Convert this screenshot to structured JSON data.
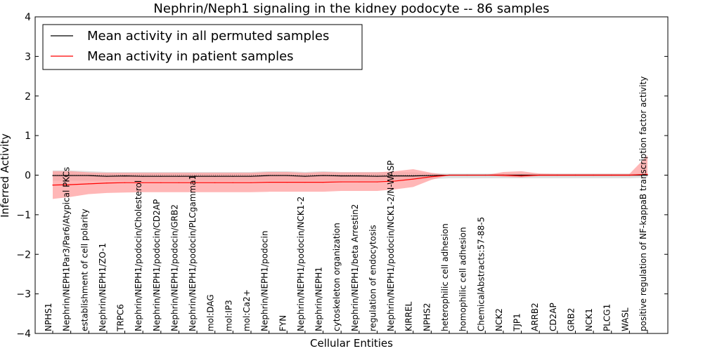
{
  "chart_data": {
    "type": "line",
    "title": "Nephrin/Neph1 signaling in the kidney podocyte -- 86 samples",
    "xlabel": "Cellular Entities",
    "ylabel": "Inferred Activity",
    "ylim": [
      -4,
      4
    ],
    "yticks": [
      -4,
      -3,
      -2,
      -1,
      0,
      1,
      2,
      3,
      4
    ],
    "ytick_labels": [
      "−4",
      "−3",
      "−2",
      "−1",
      "0",
      "1",
      "2",
      "3",
      "4"
    ],
    "legend_position": "top-left",
    "categories": [
      "NPHS1",
      "Nephrin/NEPH1Par3/Par6/Atypical PKCs",
      "establishment of cell polarity",
      "Nephrin/NEPH1/ZO-1",
      "TRPC6",
      "Nephrin/NEPH1/podocin/Cholesterol",
      "Nephrin/NEPH1/podocin/CD2AP",
      "Nephrin/NEPH1/podocin/GRB2",
      "Nephrin/NEPH1/podocin/PLCgamma1",
      "mol:DAG",
      "mol:IP3",
      "mol:Ca2+",
      "Nephrin/NEPH1/podocin",
      "FYN",
      "Nephrin/NEPH1/podocin/NCK1-2",
      "Nephrin/NEPH1",
      "cytoskeleton organization",
      "Nephrin/NEPH1/beta Arrestin2",
      "regulation of endocytosis",
      "Nephrin/NEPH1/podocin/NCK1-2/N-WASP",
      "KIRREL",
      "NPHS2",
      "heterophilic cell adhesion",
      "homophilic cell adhesion",
      "ChemicalAbstracts:57-88-5",
      "NCK2",
      "TJP1",
      "ARRB2",
      "CD2AP",
      "GRB2",
      "NCK1",
      "PLCG1",
      "WASL",
      "positive regulation of NF-kappaB transcription factor activity"
    ],
    "series": [
      {
        "name": "Mean activity in all permuted samples",
        "color": "#000000",
        "values": [
          -0.01,
          -0.01,
          -0.01,
          -0.03,
          -0.02,
          -0.03,
          -0.03,
          -0.03,
          -0.03,
          -0.03,
          -0.03,
          -0.03,
          -0.01,
          -0.01,
          -0.03,
          -0.01,
          -0.02,
          -0.02,
          -0.03,
          -0.02,
          -0.02,
          -0.01,
          0.0,
          0.0,
          0.0,
          0.0,
          0.0,
          0.0,
          0.0,
          0.0,
          0.0,
          0.0,
          0.0,
          0.0
        ],
        "band_lower": [
          -0.14,
          -0.14,
          -0.14,
          -0.14,
          -0.14,
          -0.14,
          -0.14,
          -0.14,
          -0.14,
          -0.14,
          -0.14,
          -0.14,
          -0.14,
          -0.14,
          -0.14,
          -0.14,
          -0.14,
          -0.14,
          -0.14,
          -0.13,
          -0.12,
          -0.1,
          -0.08,
          -0.08,
          -0.08,
          -0.08,
          -0.08,
          -0.08,
          -0.08,
          -0.08,
          -0.08,
          -0.08,
          -0.08,
          -0.06
        ],
        "band_upper": [
          0.12,
          0.12,
          0.1,
          0.08,
          0.08,
          0.08,
          0.08,
          0.08,
          0.08,
          0.08,
          0.08,
          0.08,
          0.1,
          0.1,
          0.08,
          0.1,
          0.08,
          0.08,
          0.08,
          0.08,
          0.07,
          0.05,
          0.04,
          0.04,
          0.04,
          0.04,
          0.04,
          0.04,
          0.04,
          0.04,
          0.04,
          0.04,
          0.04,
          0.04
        ],
        "band_color": "#cccccc"
      },
      {
        "name": "Mean activity in patient samples",
        "color": "#ff0000",
        "values": [
          -0.25,
          -0.24,
          -0.22,
          -0.2,
          -0.19,
          -0.19,
          -0.19,
          -0.19,
          -0.19,
          -0.19,
          -0.19,
          -0.19,
          -0.18,
          -0.18,
          -0.18,
          -0.18,
          -0.17,
          -0.17,
          -0.17,
          -0.15,
          -0.1,
          -0.04,
          0.0,
          0.0,
          0.0,
          0.0,
          -0.02,
          0.0,
          0.0,
          0.0,
          0.0,
          0.0,
          0.0,
          0.02
        ],
        "band_lower": [
          -0.6,
          -0.55,
          -0.48,
          -0.45,
          -0.44,
          -0.43,
          -0.43,
          -0.43,
          -0.43,
          -0.43,
          -0.43,
          -0.43,
          -0.42,
          -0.42,
          -0.42,
          -0.42,
          -0.4,
          -0.4,
          -0.4,
          -0.36,
          -0.3,
          -0.12,
          0.0,
          0.0,
          0.0,
          -0.04,
          -0.06,
          -0.02,
          -0.02,
          -0.02,
          -0.02,
          -0.02,
          -0.02,
          0.0
        ],
        "band_upper": [
          0.1,
          0.1,
          0.07,
          0.06,
          0.06,
          0.06,
          0.06,
          0.06,
          0.06,
          0.06,
          0.06,
          0.06,
          0.08,
          0.08,
          0.06,
          0.08,
          0.07,
          0.07,
          0.07,
          0.1,
          0.15,
          0.06,
          0.0,
          0.0,
          0.0,
          0.08,
          0.1,
          0.04,
          0.03,
          0.03,
          0.03,
          0.03,
          0.03,
          0.5
        ],
        "band_color": "#ff9999"
      }
    ]
  }
}
